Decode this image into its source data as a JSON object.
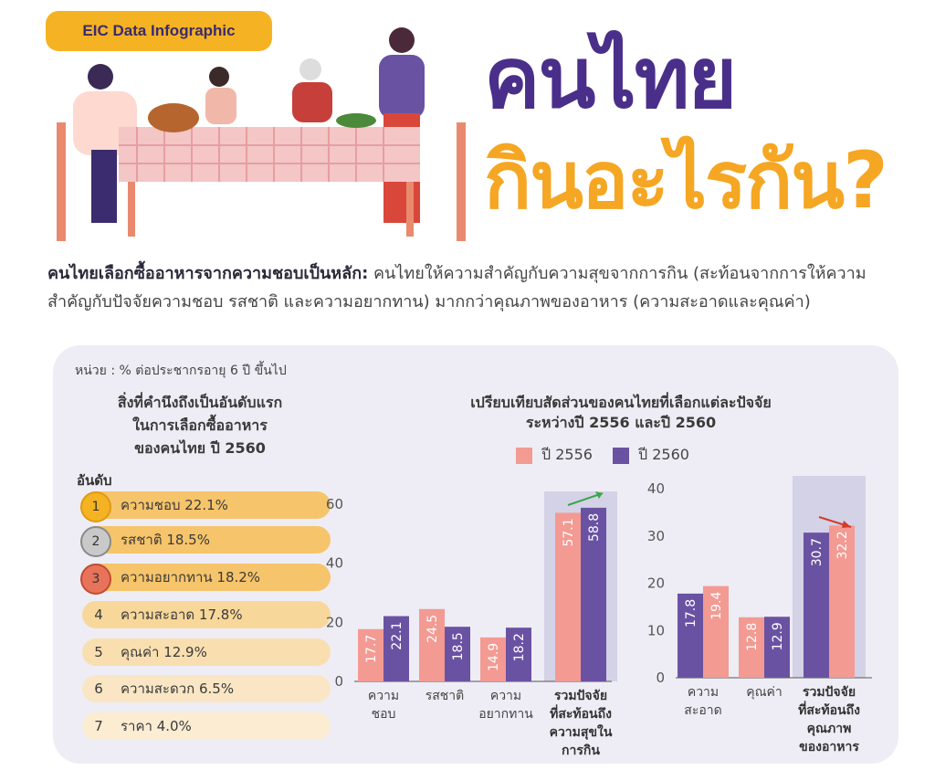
{
  "badge": "EIC Data Infographic",
  "title_line1": "คนไทย",
  "title_line2": "กินอะไรกัน?",
  "intro": {
    "lead": "คนไทยเลือกซื้ออาหารจากความชอบเป็นหลัก:",
    "body": " คนไทยให้ความสำคัญกับความสุขจากการกิน (สะท้อนจากการให้ความสำคัญกับปัจจัยความชอบ รสชาติ และความอยากทาน) มากกว่าคุณภาพของอาหาร (ความสะอาดและคุณค่า)"
  },
  "unit": "หน่วย : % ต่อประชากรอายุ 6 ปี ขึ้นไป",
  "ranking": {
    "title_lines": [
      "สิ่งที่คำนึงถึงเป็นอันดับแรก",
      "ในการเลือกซื้ออาหาร",
      "ของคนไทย ปี 2560"
    ],
    "label": "อันดับ",
    "items": [
      {
        "rank": "1",
        "text": "ความชอบ 22.1%"
      },
      {
        "rank": "2",
        "text": "รสชาติ  18.5%"
      },
      {
        "rank": "3",
        "text": "ความอยากทาน 18.2%"
      },
      {
        "rank": "4",
        "text": "ความสะอาด 17.8%"
      },
      {
        "rank": "5",
        "text": "คุณค่า 12.9%"
      },
      {
        "rank": "6",
        "text": "ความสะดวก 6.5%"
      },
      {
        "rank": "7",
        "text": "ราคา 4.0%"
      }
    ]
  },
  "comparison": {
    "title_lines": [
      "เปรียบเทียบสัดส่วนของคนไทยที่เลือกแต่ละปัจจัย",
      "ระหว่างปี 2556 และปี 2560"
    ],
    "legend": [
      "ปี 2556",
      "ปี 2560"
    ]
  },
  "colors": {
    "y2556": "#f39a93",
    "y2560": "#6a52a3",
    "gold": "#f5b324",
    "purple": "#4a2f8a"
  },
  "chart_data": [
    {
      "type": "bar",
      "categories": [
        "ความ|ชอบ",
        "รสชาติ",
        "ความ|อยากทาน",
        "รวมปัจจัย|ที่สะท้อนถึง|ความสุขใน|การกิน"
      ],
      "series": [
        {
          "name": "ปี 2556",
          "values": [
            17.7,
            24.5,
            14.9,
            57.1
          ]
        },
        {
          "name": "ปี 2560",
          "values": [
            22.1,
            18.5,
            18.2,
            58.8
          ]
        }
      ],
      "ylim": [
        0,
        60
      ],
      "yticks": [
        0,
        20,
        40,
        60
      ]
    },
    {
      "type": "bar",
      "categories": [
        "ความ|สะอาด",
        "คุณค่า",
        "รวมปัจจัย|ที่สะท้อนถึง|คุณภาพ|ของอาหาร"
      ],
      "series": [
        {
          "name": "ปี 2556",
          "values": [
            19.4,
            12.8,
            32.2
          ]
        },
        {
          "name": "ปี 2560",
          "values": [
            17.8,
            12.9,
            30.7
          ]
        }
      ],
      "ylim": [
        0,
        40
      ],
      "yticks": [
        0,
        10,
        20,
        30,
        40
      ]
    }
  ]
}
